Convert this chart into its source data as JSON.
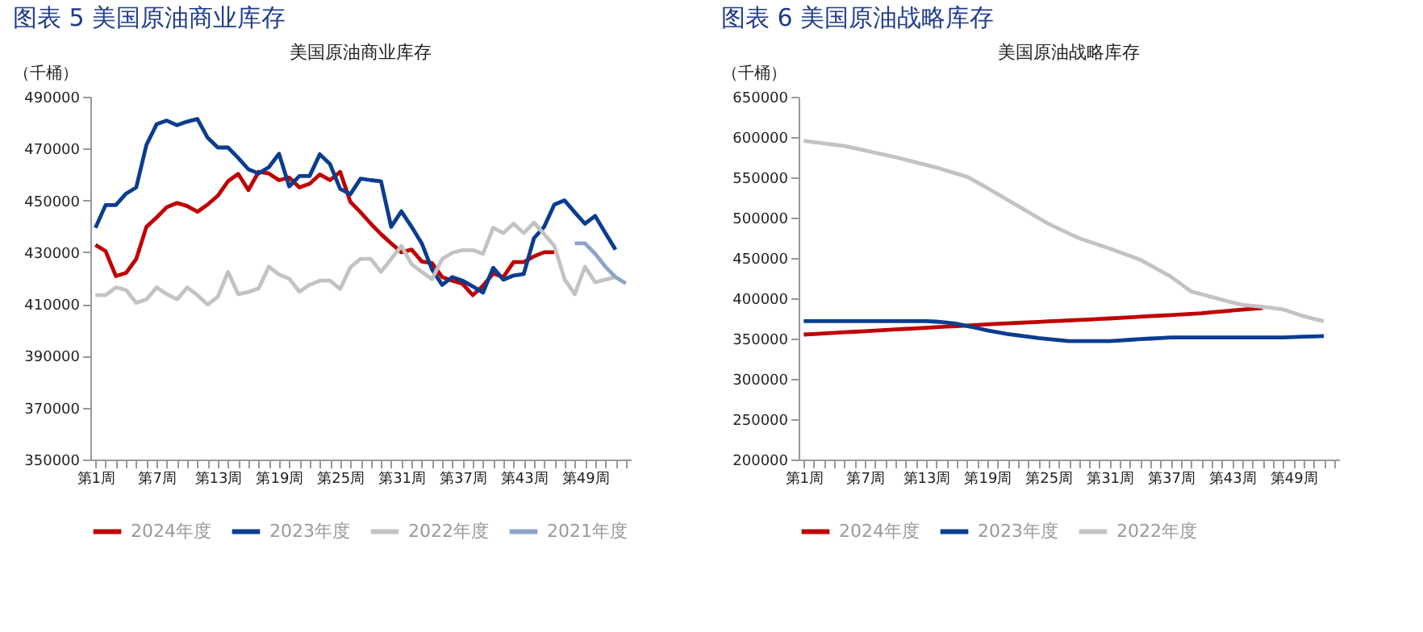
{
  "chart_data": [
    {
      "type": "line",
      "title": "图表 5  美国原油商业库存",
      "subtitle": "美国原油商业库存",
      "ylabel": "（千桶）",
      "categories": [
        "第1周",
        null,
        null,
        null,
        null,
        null,
        "第7周",
        null,
        null,
        null,
        null,
        null,
        "第13周",
        null,
        null,
        null,
        null,
        null,
        "第19周",
        null,
        null,
        null,
        null,
        null,
        "第25周",
        null,
        null,
        null,
        null,
        null,
        "第31周",
        null,
        null,
        null,
        null,
        null,
        "第37周",
        null,
        null,
        null,
        null,
        null,
        "第43周",
        null,
        null,
        null,
        null,
        null,
        "第49周",
        null,
        null,
        null,
        null
      ],
      "ylim": [
        350000,
        490000
      ],
      "yticks": [
        350000,
        370000,
        390000,
        410000,
        430000,
        450000,
        470000,
        490000
      ],
      "legend": "bottom",
      "grid": false,
      "marker": "none",
      "series": [
        {
          "name": "2024年度",
          "color": "#c00000",
          "values": [
            432800,
            430400,
            420800,
            422000,
            427400,
            439800,
            443400,
            447400,
            449000,
            447800,
            445600,
            448400,
            451800,
            457400,
            460200,
            454000,
            461000,
            460400,
            457800,
            458800,
            455000,
            456400,
            460000,
            457800,
            461000,
            449400,
            445400,
            441000,
            437000,
            433400,
            430000,
            431000,
            426400,
            425800,
            420400,
            419000,
            417800,
            413400,
            417000,
            421800,
            420400,
            426200,
            426200,
            428400,
            430000,
            430000,
            null,
            null,
            null,
            null,
            null,
            null,
            null
          ]
        },
        {
          "name": "2023年度",
          "color": "#0a3d8f",
          "values": [
            439400,
            448200,
            448200,
            452600,
            455000,
            471400,
            479400,
            480800,
            479000,
            480400,
            481400,
            474200,
            470400,
            470400,
            466400,
            462000,
            460400,
            462800,
            468000,
            455400,
            459400,
            459400,
            467800,
            464000,
            454400,
            452400,
            458400,
            457800,
            457400,
            439800,
            445800,
            439800,
            433400,
            423400,
            417400,
            420400,
            419000,
            416800,
            414400,
            424000,
            419400,
            421000,
            421600,
            435400,
            439800,
            448400,
            450000,
            445400,
            441000,
            444000,
            437400,
            431000,
            null
          ]
        },
        {
          "name": "2022年度",
          "color": "#c3c3c3",
          "values": [
            413400,
            413400,
            416400,
            415400,
            410400,
            411800,
            416400,
            413800,
            411800,
            416400,
            413400,
            409800,
            412800,
            422400,
            413800,
            414600,
            416000,
            424400,
            421400,
            419800,
            414800,
            417400,
            419000,
            419000,
            415800,
            424200,
            427400,
            427400,
            422400,
            427400,
            432400,
            425400,
            422400,
            419600,
            427400,
            429800,
            430800,
            430800,
            429400,
            439400,
            437400,
            441000,
            437400,
            441400,
            437000,
            432400,
            419600,
            413800,
            424400,
            418400,
            419400,
            420400,
            null
          ]
        },
        {
          "name": "2021年度",
          "color": "#8ea3c8",
          "values": [
            null,
            null,
            null,
            null,
            null,
            null,
            null,
            null,
            null,
            null,
            null,
            null,
            null,
            null,
            null,
            null,
            null,
            null,
            null,
            null,
            null,
            null,
            null,
            null,
            null,
            null,
            null,
            null,
            null,
            null,
            null,
            null,
            null,
            null,
            null,
            null,
            null,
            null,
            null,
            null,
            null,
            null,
            null,
            null,
            null,
            null,
            null,
            433400,
            433400,
            429400,
            424400,
            420400,
            418000
          ]
        }
      ]
    },
    {
      "type": "line",
      "title": "图表 6  美国原油战略库存",
      "subtitle": "美国原油战略库存",
      "ylabel": "（千桶）",
      "categories": [
        "第1周",
        null,
        null,
        null,
        null,
        null,
        "第7周",
        null,
        null,
        null,
        null,
        null,
        "第13周",
        null,
        null,
        null,
        null,
        null,
        "第19周",
        null,
        null,
        null,
        null,
        null,
        "第25周",
        null,
        null,
        null,
        null,
        null,
        "第31周",
        null,
        null,
        null,
        null,
        null,
        "第37周",
        null,
        null,
        null,
        null,
        null,
        "第43周",
        null,
        null,
        null,
        null,
        null,
        "第49周",
        null,
        null,
        null,
        null
      ],
      "ylim": [
        200000,
        650000
      ],
      "yticks": [
        200000,
        250000,
        300000,
        350000,
        400000,
        450000,
        500000,
        550000,
        600000,
        650000
      ],
      "legend": "bottom",
      "grid": false,
      "marker": "none",
      "series": [
        {
          "name": "2024年度",
          "color": "#c00000",
          "values": [
            355000,
            355700,
            356400,
            357100,
            357800,
            358500,
            359200,
            359900,
            360600,
            361300,
            362000,
            362700,
            363400,
            364100,
            364800,
            365500,
            366200,
            366900,
            367600,
            368300,
            368900,
            369500,
            370100,
            370700,
            371300,
            371900,
            372500,
            373100,
            373700,
            374300,
            375000,
            375700,
            376400,
            377100,
            377800,
            378500,
            379200,
            379900,
            380600,
            381300,
            382600,
            383700,
            384800,
            385900,
            387000,
            388000,
            null,
            null,
            null,
            null,
            null,
            null,
            null
          ]
        },
        {
          "name": "2023年度",
          "color": "#0a3d8f",
          "values": [
            371600,
            371600,
            371600,
            371600,
            371600,
            371600,
            371600,
            371600,
            371600,
            371600,
            371600,
            371600,
            371600,
            371000,
            369800,
            368400,
            365700,
            363000,
            360200,
            357900,
            355700,
            354000,
            352300,
            350600,
            349300,
            348100,
            346800,
            346800,
            346800,
            346800,
            346800,
            347700,
            348500,
            349400,
            350000,
            350700,
            351300,
            351300,
            351300,
            351300,
            351300,
            351300,
            351300,
            351300,
            351300,
            351300,
            351300,
            351300,
            351800,
            352300,
            352700,
            353200,
            null
          ]
        },
        {
          "name": "2022年度",
          "color": "#c3c3c3",
          "values": [
            595300,
            593700,
            592100,
            590500,
            588900,
            586100,
            583300,
            580500,
            577800,
            575000,
            571800,
            568600,
            565400,
            562200,
            558400,
            554600,
            550800,
            543800,
            536800,
            529400,
            522000,
            514600,
            507200,
            499700,
            492300,
            486400,
            480400,
            474500,
            470300,
            466000,
            461800,
            457100,
            452500,
            447800,
            440800,
            433900,
            426900,
            417600,
            408400,
            405000,
            401600,
            398200,
            395000,
            391900,
            390600,
            389400,
            387800,
            386200,
            382000,
            377900,
            374700,
            371600,
            null
          ]
        }
      ]
    }
  ]
}
